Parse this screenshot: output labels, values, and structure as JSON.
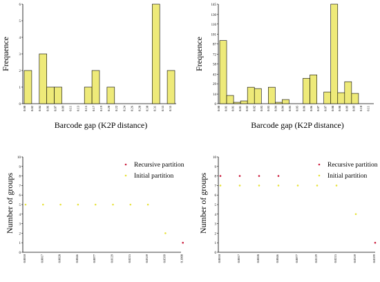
{
  "figure": {
    "panels": 4
  },
  "chart_data": [
    {
      "type": "bar",
      "panel": "top-left",
      "xlabel": "Barcode gap (K2P distance)",
      "ylabel": "Frequence",
      "ylim": [
        0,
        6
      ],
      "yticks": [
        "0",
        "1",
        "2",
        "3",
        "4",
        "5",
        "6"
      ],
      "categories": [
        "0.00",
        "0.02",
        "0.04",
        "0.06",
        "0.07",
        "0.09",
        "0.11",
        "0.13",
        "0.15",
        "0.17",
        "0.19",
        "0.20",
        "0.22",
        "0.24",
        "0.26",
        "0.28",
        "0.30",
        "0.31",
        "0.33",
        "0.35"
      ],
      "values": [
        2.0,
        0,
        3.0,
        1.0,
        1.0,
        0,
        0,
        0,
        1.0,
        2.0,
        0,
        1.0,
        0,
        0,
        0,
        0,
        0,
        6.0,
        0,
        2.0
      ],
      "bar_color": "#eeea79",
      "grid": "none"
    },
    {
      "type": "bar",
      "panel": "top-right",
      "xlabel": "Barcode gap (K2P distance)",
      "ylabel": "Frequence",
      "ylim": [
        0,
        145
      ],
      "yticks": [
        "0",
        "14",
        "29",
        "43",
        "58",
        "72",
        "87",
        "101",
        "116",
        "130",
        "145"
      ],
      "categories": [
        "0.00",
        "0.01",
        "0.01",
        "0.01",
        "0.02",
        "0.02",
        "0.03",
        "0.03",
        "0.04",
        "0.04",
        "0.05",
        "0.05",
        "0.06",
        "0.06",
        "0.07",
        "0.07",
        "0.08",
        "0.08",
        "0.09",
        "0.09",
        "0.10",
        "0.11"
      ],
      "values": [
        92,
        12,
        2,
        4,
        24,
        22,
        0,
        24,
        2,
        6,
        0,
        0,
        37,
        42,
        0,
        17,
        145,
        16,
        32,
        15,
        0,
        0
      ],
      "bar_color": "#eeea79",
      "grid": "none"
    },
    {
      "type": "scatter",
      "panel": "bottom-left",
      "ylabel": "Number of groups",
      "ylim": [
        0,
        10
      ],
      "yticks": [
        "0",
        "1",
        "2",
        "3",
        "4",
        "5",
        "6",
        "7",
        "8",
        "9",
        "10"
      ],
      "x_categories": [
        "0.0010",
        "0.0017",
        "0.0028",
        "0.0046",
        "0.0077",
        "0.0129",
        "0.0215",
        "0.0359",
        "0.0599",
        "0.1000"
      ],
      "legend": "top-right",
      "series": [
        {
          "name": "Recursive partition",
          "color": "#cc1f3f",
          "points": [
            {
              "x": "0.1000",
              "y": 1
            }
          ]
        },
        {
          "name": "Initial partition",
          "color": "#e8e23b",
          "points": [
            {
              "x": "0.0010",
              "y": 5
            },
            {
              "x": "0.0017",
              "y": 5
            },
            {
              "x": "0.0028",
              "y": 5
            },
            {
              "x": "0.0046",
              "y": 5
            },
            {
              "x": "0.0077",
              "y": 5
            },
            {
              "x": "0.0129",
              "y": 5
            },
            {
              "x": "0.0215",
              "y": 5
            },
            {
              "x": "0.0359",
              "y": 5
            },
            {
              "x": "0.0599",
              "y": 2
            }
          ]
        }
      ]
    },
    {
      "type": "scatter",
      "panel": "bottom-right",
      "ylabel": "Number of groups",
      "ylim": [
        0,
        10
      ],
      "yticks": [
        "0",
        "1",
        "2",
        "3",
        "4",
        "5",
        "6",
        "7",
        "8",
        "9",
        "10"
      ],
      "x_categories": [
        "0.0010",
        "0.0017",
        "0.0028",
        "0.0046",
        "0.0077",
        "0.0129",
        "0.0215",
        "0.0359",
        "0.0599"
      ],
      "legend": "top-right",
      "series": [
        {
          "name": "Recursive partition",
          "color": "#cc1f3f",
          "points": [
            {
              "x": "0.0010",
              "y": 8
            },
            {
              "x": "0.0017",
              "y": 8
            },
            {
              "x": "0.0028",
              "y": 8
            },
            {
              "x": "0.0046",
              "y": 8
            },
            {
              "x": "0.0599",
              "y": 1
            }
          ]
        },
        {
          "name": "Initial partition",
          "color": "#e8e23b",
          "points": [
            {
              "x": "0.0010",
              "y": 7
            },
            {
              "x": "0.0017",
              "y": 7
            },
            {
              "x": "0.0028",
              "y": 7
            },
            {
              "x": "0.0046",
              "y": 7
            },
            {
              "x": "0.0077",
              "y": 7
            },
            {
              "x": "0.0129",
              "y": 7
            },
            {
              "x": "0.0215",
              "y": 7
            },
            {
              "x": "0.0359",
              "y": 4
            }
          ]
        }
      ]
    }
  ]
}
